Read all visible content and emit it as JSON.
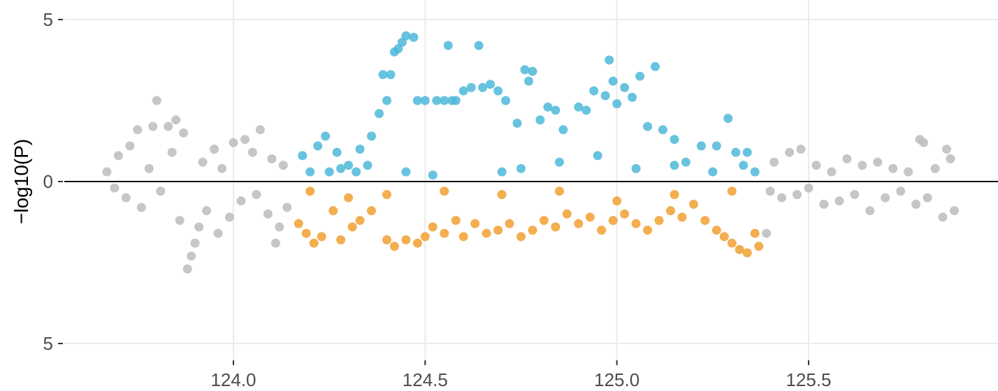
{
  "chart_data": {
    "type": "scatter",
    "title": "",
    "xlabel": "",
    "ylabel": "−log10(P)",
    "xlim": [
      123.58,
      126.0
    ],
    "ylim": [
      -5.5,
      5.5
    ],
    "x_ticks": [
      124.0,
      124.5,
      125.0,
      125.5
    ],
    "x_tick_labels": [
      "124.0",
      "124.5",
      "125.0",
      "125.5"
    ],
    "y_ticks": [
      5,
      0,
      -5
    ],
    "y_tick_labels": [
      "5",
      "0",
      "5"
    ],
    "grid": true,
    "legend": "none",
    "reference_line_y": 0,
    "note": "Mirrored Manhattan-style plot: upper half and lower half both show -log10(P) magnitude (lower half plotted as negative).",
    "colors": {
      "upper_highlight": "#4db8d9",
      "lower_highlight": "#f0a030",
      "background": "#bcbcbc",
      "grid": "#ebebeb",
      "zero_line": "#000000"
    },
    "highlight_region": [
      124.15,
      125.38
    ],
    "series": [
      {
        "color_key": "background",
        "points": [
          [
            123.67,
            0.3
          ],
          [
            123.69,
            -0.2
          ],
          [
            123.7,
            0.8
          ],
          [
            123.72,
            -0.5
          ],
          [
            123.73,
            1.1
          ],
          [
            123.75,
            1.6
          ],
          [
            123.76,
            -0.8
          ],
          [
            123.78,
            0.4
          ],
          [
            123.79,
            1.7
          ],
          [
            123.8,
            2.5
          ],
          [
            123.81,
            -0.3
          ],
          [
            123.83,
            1.7
          ],
          [
            123.84,
            0.9
          ],
          [
            123.85,
            1.9
          ],
          [
            123.86,
            -1.2
          ],
          [
            123.87,
            1.5
          ],
          [
            123.88,
            -2.7
          ],
          [
            123.89,
            -2.3
          ],
          [
            123.9,
            -1.9
          ],
          [
            123.91,
            -1.4
          ],
          [
            123.92,
            0.6
          ],
          [
            123.93,
            -0.9
          ],
          [
            123.95,
            1.0
          ],
          [
            123.96,
            -1.6
          ],
          [
            123.97,
            0.4
          ],
          [
            123.99,
            -1.1
          ],
          [
            124.0,
            1.2
          ],
          [
            124.02,
            -0.6
          ],
          [
            124.03,
            1.3
          ],
          [
            124.05,
            0.9
          ],
          [
            124.06,
            -0.4
          ],
          [
            124.07,
            1.6
          ],
          [
            124.09,
            -1.0
          ],
          [
            124.1,
            0.7
          ],
          [
            124.11,
            -1.9
          ],
          [
            124.12,
            -1.4
          ],
          [
            124.13,
            0.5
          ],
          [
            124.14,
            -0.8
          ],
          [
            125.39,
            -1.6
          ],
          [
            125.4,
            -0.3
          ],
          [
            125.41,
            0.6
          ],
          [
            125.43,
            -0.5
          ],
          [
            125.45,
            0.9
          ],
          [
            125.47,
            -0.4
          ],
          [
            125.48,
            1.0
          ],
          [
            125.5,
            -0.2
          ],
          [
            125.52,
            0.5
          ],
          [
            125.54,
            -0.7
          ],
          [
            125.56,
            0.3
          ],
          [
            125.58,
            -0.6
          ],
          [
            125.6,
            0.7
          ],
          [
            125.62,
            -0.4
          ],
          [
            125.64,
            0.5
          ],
          [
            125.66,
            -0.9
          ],
          [
            125.68,
            0.6
          ],
          [
            125.7,
            -0.5
          ],
          [
            125.72,
            0.4
          ],
          [
            125.74,
            -0.3
          ],
          [
            125.76,
            0.3
          ],
          [
            125.78,
            -0.7
          ],
          [
            125.79,
            1.3
          ],
          [
            125.8,
            1.2
          ],
          [
            125.81,
            -0.5
          ],
          [
            125.83,
            0.4
          ],
          [
            125.85,
            -1.1
          ],
          [
            125.86,
            1.0
          ],
          [
            125.87,
            0.7
          ],
          [
            125.88,
            -0.9
          ]
        ]
      },
      {
        "color_key": "upper_highlight",
        "points": [
          [
            124.18,
            0.8
          ],
          [
            124.22,
            1.1
          ],
          [
            124.24,
            1.4
          ],
          [
            124.27,
            0.9
          ],
          [
            124.3,
            0.5
          ],
          [
            124.33,
            1.0
          ],
          [
            124.36,
            1.4
          ],
          [
            124.38,
            2.1
          ],
          [
            124.39,
            3.3
          ],
          [
            124.4,
            2.5
          ],
          [
            124.41,
            3.3
          ],
          [
            124.42,
            4.0
          ],
          [
            124.43,
            4.1
          ],
          [
            124.44,
            4.3
          ],
          [
            124.45,
            4.5
          ],
          [
            124.47,
            4.45
          ],
          [
            124.48,
            2.5
          ],
          [
            124.5,
            2.5
          ],
          [
            124.53,
            2.5
          ],
          [
            124.55,
            2.5
          ],
          [
            124.57,
            2.5
          ],
          [
            124.58,
            2.5
          ],
          [
            124.6,
            2.8
          ],
          [
            124.62,
            2.9
          ],
          [
            124.64,
            4.2
          ],
          [
            124.65,
            2.9
          ],
          [
            124.67,
            3.0
          ],
          [
            124.69,
            2.8
          ],
          [
            124.71,
            2.5
          ],
          [
            124.74,
            1.8
          ],
          [
            124.76,
            3.45
          ],
          [
            124.77,
            3.1
          ],
          [
            124.78,
            3.4
          ],
          [
            124.8,
            1.9
          ],
          [
            124.82,
            2.3
          ],
          [
            124.84,
            2.2
          ],
          [
            124.86,
            1.6
          ],
          [
            124.9,
            2.3
          ],
          [
            124.92,
            2.2
          ],
          [
            124.94,
            2.8
          ],
          [
            124.97,
            2.65
          ],
          [
            124.98,
            3.75
          ],
          [
            124.99,
            3.1
          ],
          [
            125.0,
            2.4
          ],
          [
            125.02,
            2.9
          ],
          [
            125.04,
            2.6
          ],
          [
            125.06,
            3.25
          ],
          [
            125.08,
            1.7
          ],
          [
            125.1,
            3.55
          ],
          [
            125.12,
            1.6
          ],
          [
            125.15,
            1.3
          ],
          [
            125.18,
            0.6
          ],
          [
            125.22,
            1.1
          ],
          [
            125.26,
            1.1
          ],
          [
            125.29,
            1.95
          ],
          [
            125.31,
            0.9
          ],
          [
            125.34,
            0.9
          ],
          [
            125.36,
            0.3
          ],
          [
            124.56,
            4.2
          ],
          [
            124.2,
            0.3
          ],
          [
            124.25,
            0.3
          ],
          [
            124.28,
            0.4
          ],
          [
            124.32,
            0.3
          ],
          [
            124.35,
            0.5
          ],
          [
            124.45,
            0.3
          ],
          [
            124.52,
            0.2
          ],
          [
            124.7,
            0.3
          ],
          [
            124.75,
            0.4
          ],
          [
            124.85,
            0.6
          ],
          [
            124.95,
            0.8
          ],
          [
            125.05,
            0.4
          ],
          [
            125.15,
            0.5
          ],
          [
            125.25,
            0.3
          ],
          [
            125.33,
            0.5
          ]
        ]
      },
      {
        "color_key": "lower_highlight",
        "points": [
          [
            124.17,
            -1.3
          ],
          [
            124.19,
            -1.6
          ],
          [
            124.21,
            -1.9
          ],
          [
            124.23,
            -1.7
          ],
          [
            124.26,
            -0.9
          ],
          [
            124.28,
            -1.8
          ],
          [
            124.31,
            -1.4
          ],
          [
            124.33,
            -1.2
          ],
          [
            124.36,
            -0.9
          ],
          [
            124.4,
            -1.8
          ],
          [
            124.42,
            -2.0
          ],
          [
            124.45,
            -1.8
          ],
          [
            124.48,
            -1.9
          ],
          [
            124.5,
            -1.7
          ],
          [
            124.52,
            -1.4
          ],
          [
            124.55,
            -1.6
          ],
          [
            124.58,
            -1.2
          ],
          [
            124.6,
            -1.7
          ],
          [
            124.63,
            -1.3
          ],
          [
            124.66,
            -1.6
          ],
          [
            124.69,
            -1.5
          ],
          [
            124.72,
            -1.3
          ],
          [
            124.75,
            -1.7
          ],
          [
            124.78,
            -1.5
          ],
          [
            124.81,
            -1.2
          ],
          [
            124.84,
            -1.4
          ],
          [
            124.87,
            -1.0
          ],
          [
            124.9,
            -1.3
          ],
          [
            124.93,
            -1.1
          ],
          [
            124.96,
            -1.5
          ],
          [
            124.99,
            -1.2
          ],
          [
            125.02,
            -1.0
          ],
          [
            125.05,
            -1.3
          ],
          [
            125.08,
            -1.5
          ],
          [
            125.11,
            -1.2
          ],
          [
            125.14,
            -0.9
          ],
          [
            125.17,
            -1.1
          ],
          [
            125.2,
            -0.7
          ],
          [
            125.23,
            -1.2
          ],
          [
            125.26,
            -1.5
          ],
          [
            125.28,
            -1.7
          ],
          [
            125.3,
            -1.9
          ],
          [
            125.32,
            -2.1
          ],
          [
            125.34,
            -2.2
          ],
          [
            125.36,
            -1.6
          ],
          [
            125.37,
            -2.0
          ],
          [
            124.2,
            -0.3
          ],
          [
            124.3,
            -0.5
          ],
          [
            124.4,
            -0.4
          ],
          [
            124.55,
            -0.3
          ],
          [
            124.7,
            -0.4
          ],
          [
            124.85,
            -0.3
          ],
          [
            125.0,
            -0.6
          ],
          [
            125.15,
            -0.4
          ],
          [
            125.3,
            -0.3
          ]
        ]
      }
    ]
  }
}
